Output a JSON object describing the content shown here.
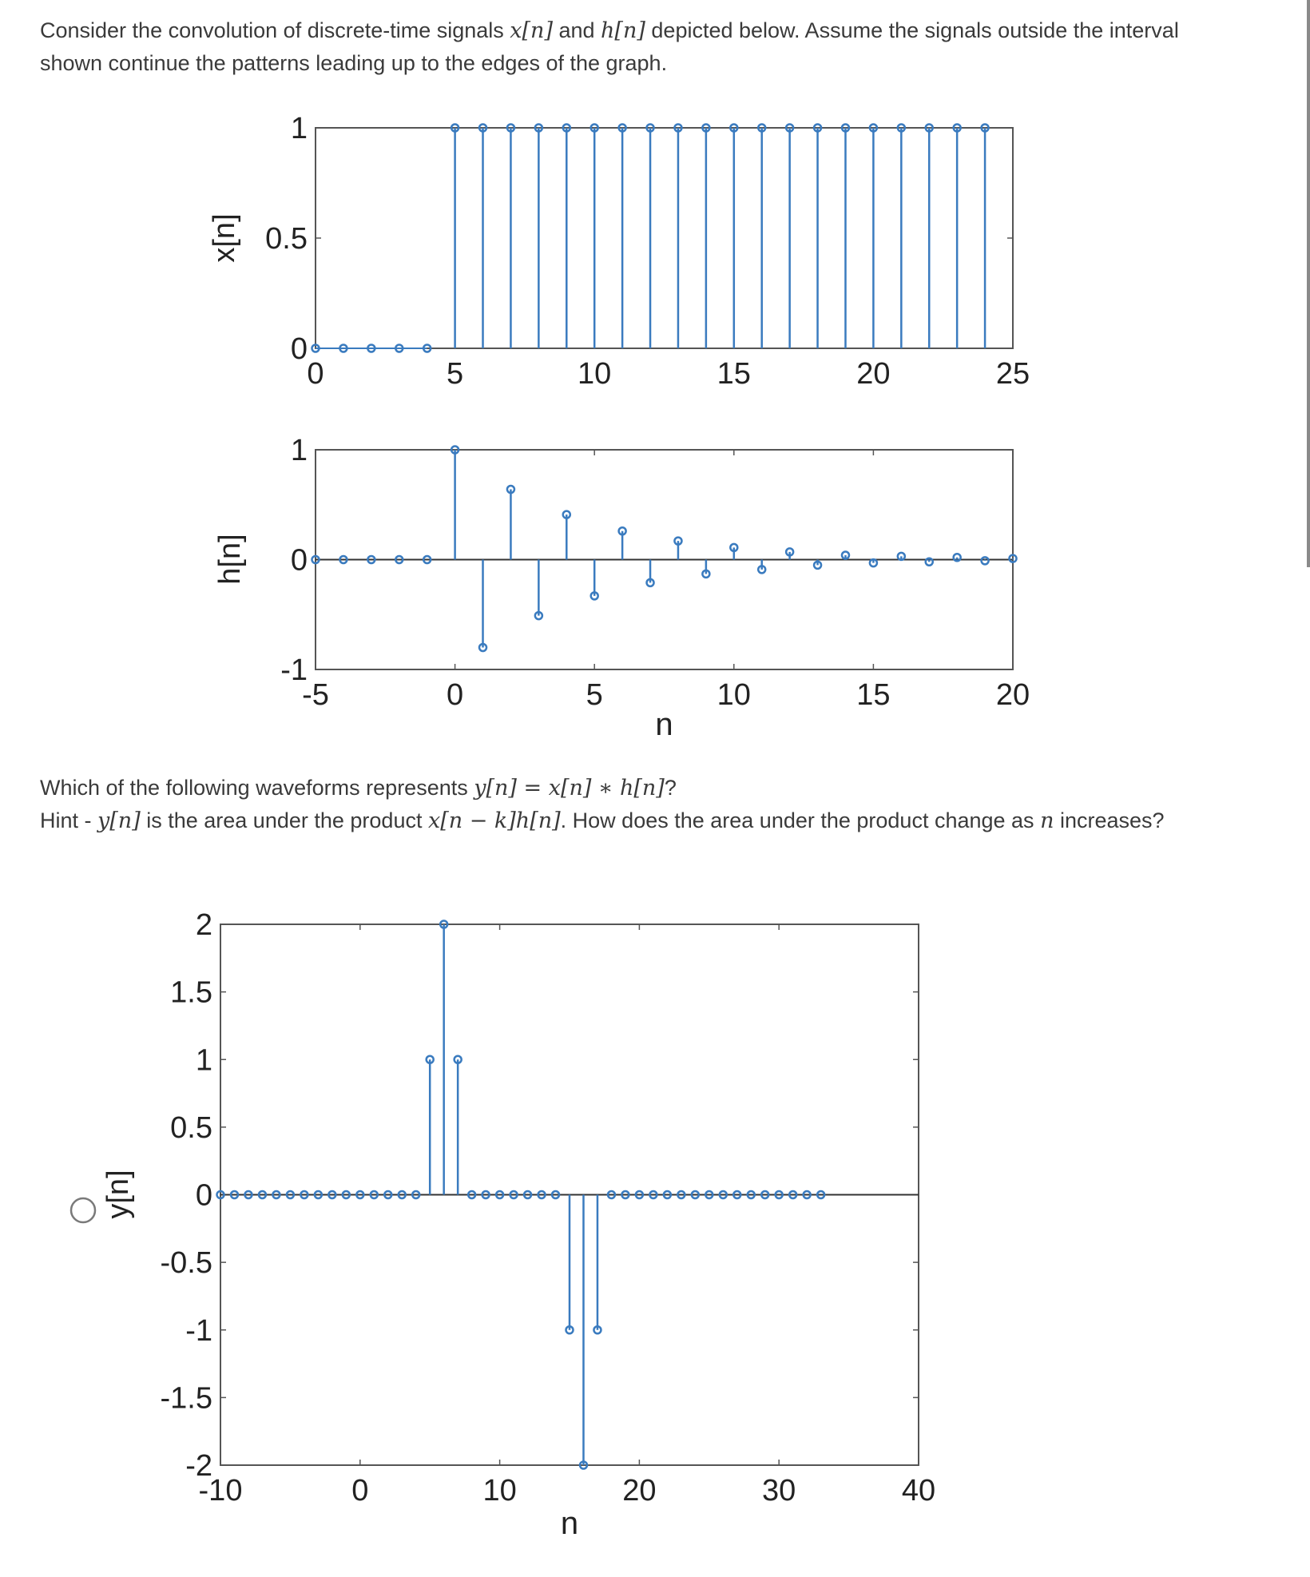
{
  "question": {
    "intro_pre": "Consider the convolution of discrete-time signals ",
    "intro_x": "x[n]",
    "intro_and": " and ",
    "intro_h": "h[n]",
    "intro_post": " depicted below. Assume the signals outside the interval",
    "intro_line2": "shown continue the patterns leading up to the edges of the graph.",
    "which_pre": "Which of the following waveforms represents ",
    "which_y": "y[n]",
    "which_eq": " = ",
    "which_x": "x[n]",
    "which_star": " ∗ ",
    "which_h": "h[n]",
    "which_q": "?",
    "hint_pre": "Hint - ",
    "hint_y": "y[n]",
    "hint_mid": " is the area under the product ",
    "hint_x": "x[n − k]h[n]",
    "hint_mid2": ". How does the area under the product change as ",
    "hint_n": "n",
    "hint_post": " increases?"
  },
  "option": {
    "selected": false
  },
  "colors": {
    "stem": "#3a7bbf",
    "axis": "#333333",
    "text": "#3a3a3a"
  },
  "chart_data": [
    {
      "type": "stem",
      "ylabel": "x[n]",
      "xlim": [
        0,
        25
      ],
      "ylim": [
        0,
        1
      ],
      "xticks": [
        0,
        5,
        10,
        15,
        20,
        25
      ],
      "yticks": [
        0,
        0.5,
        1
      ],
      "ytick_labels": [
        "0",
        "0.5",
        "1"
      ],
      "x": [
        0,
        1,
        2,
        3,
        4,
        5,
        6,
        7,
        8,
        9,
        10,
        11,
        12,
        13,
        14,
        15,
        16,
        17,
        18,
        19,
        20,
        21,
        22,
        23,
        24
      ],
      "y": [
        0,
        0,
        0,
        0,
        0,
        1,
        1,
        1,
        1,
        1,
        1,
        1,
        1,
        1,
        1,
        1,
        1,
        1,
        1,
        1,
        1,
        1,
        1,
        1,
        1
      ]
    },
    {
      "type": "stem",
      "ylabel": "h[n]",
      "xlabel": "n",
      "xlim": [
        -5,
        20
      ],
      "ylim": [
        -1,
        1
      ],
      "xticks": [
        -5,
        0,
        5,
        10,
        15,
        20
      ],
      "yticks": [
        -1,
        0,
        1
      ],
      "ytick_labels": [
        "-1",
        "0",
        "1"
      ],
      "x": [
        -5,
        -4,
        -3,
        -2,
        -1,
        0,
        1,
        2,
        3,
        4,
        5,
        6,
        7,
        8,
        9,
        10,
        11,
        12,
        13,
        14,
        15,
        16,
        17,
        18,
        19,
        20
      ],
      "y": [
        0,
        0,
        0,
        0,
        0,
        1,
        -0.8,
        0.64,
        -0.51,
        0.41,
        -0.33,
        0.26,
        -0.21,
        0.17,
        -0.13,
        0.11,
        -0.09,
        0.07,
        -0.05,
        0.04,
        -0.03,
        0.03,
        -0.02,
        0.02,
        -0.01,
        0.01
      ]
    },
    {
      "type": "stem",
      "ylabel": "y[n]",
      "xlabel": "n",
      "xlim": [
        -10,
        40
      ],
      "ylim": [
        -2,
        2
      ],
      "xticks": [
        -10,
        0,
        10,
        20,
        30,
        40
      ],
      "yticks": [
        -2,
        -1.5,
        -1,
        -0.5,
        0,
        0.5,
        1,
        1.5,
        2
      ],
      "ytick_labels": [
        "-2",
        "-1.5",
        "-1",
        "-0.5",
        "0",
        "0.5",
        "1",
        "1.5",
        "2"
      ],
      "x": [
        -10,
        -9,
        -8,
        -7,
        -6,
        -5,
        -4,
        -3,
        -2,
        -1,
        0,
        1,
        2,
        3,
        4,
        5,
        6,
        7,
        8,
        9,
        10,
        11,
        12,
        13,
        14,
        15,
        16,
        17,
        18,
        19,
        20,
        21,
        22,
        23,
        24,
        25,
        26,
        27,
        28,
        29,
        30,
        31,
        32,
        33
      ],
      "y": [
        0,
        0,
        0,
        0,
        0,
        0,
        0,
        0,
        0,
        0,
        0,
        0,
        0,
        0,
        0,
        1,
        2,
        1,
        0,
        0,
        0,
        0,
        0,
        0,
        0,
        -1,
        -2,
        -1,
        0,
        0,
        0,
        0,
        0,
        0,
        0,
        0,
        0,
        0,
        0,
        0,
        0,
        0,
        0,
        0
      ]
    }
  ]
}
